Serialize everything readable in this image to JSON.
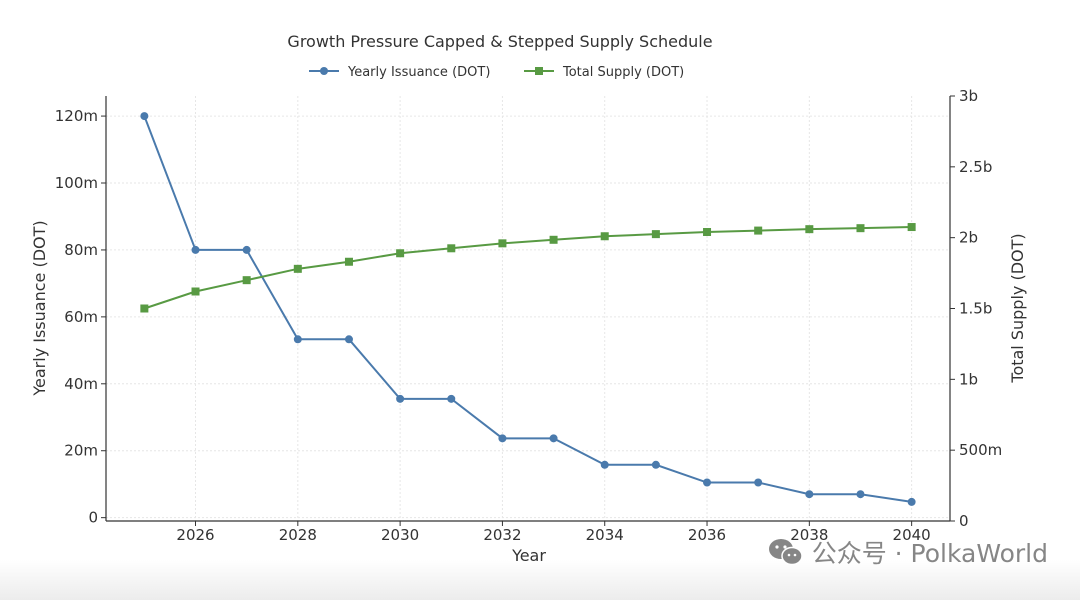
{
  "chart_data": {
    "type": "line",
    "title": "Growth Pressure Capped & Stepped Supply Schedule",
    "xlabel": "Year",
    "ylabel_left": "Yearly Issuance (DOT)",
    "ylabel_right": "Total Supply (DOT)",
    "xlim": [
      2024.25,
      2040.75
    ],
    "ylim_left": [
      -1000000,
      126000000
    ],
    "ylim_right": [
      0,
      3000000000
    ],
    "x_ticks": [
      2026,
      2028,
      2030,
      2032,
      2034,
      2036,
      2038,
      2040
    ],
    "x_tick_labels": [
      "2026",
      "2028",
      "2030",
      "2032",
      "2034",
      "2036",
      "2038",
      "2040"
    ],
    "y_left_ticks": [
      0,
      20000000,
      40000000,
      60000000,
      80000000,
      100000000,
      120000000
    ],
    "y_left_tick_labels": [
      "0",
      "20m",
      "40m",
      "60m",
      "80m",
      "100m",
      "120m"
    ],
    "y_right_ticks": [
      0,
      500000000,
      1000000000,
      1500000000,
      2000000000,
      2500000000,
      3000000000
    ],
    "y_right_tick_labels": [
      "0",
      "500m",
      "1b",
      "1.5b",
      "2b",
      "2.5b",
      "3b"
    ],
    "grid": true,
    "legend_position": "top-center",
    "x": [
      2025,
      2026,
      2027,
      2028,
      2029,
      2030,
      2031,
      2032,
      2033,
      2034,
      2035,
      2036,
      2037,
      2038,
      2039,
      2040
    ],
    "series": [
      {
        "name": "Yearly Issuance (DOT)",
        "axis": "left",
        "marker": "circle",
        "color": "#4a7aac",
        "values": [
          120000000,
          80000000,
          80000000,
          53300000,
          53300000,
          35500000,
          35500000,
          23700000,
          23700000,
          15800000,
          15800000,
          10500000,
          10500000,
          7000000,
          7000000,
          4700000
        ]
      },
      {
        "name": "Total Supply (DOT)",
        "axis": "right",
        "marker": "square",
        "color": "#589a43",
        "values": [
          1500000000,
          1620000000,
          1700000000,
          1780000000,
          1830000000,
          1890000000,
          1925000000,
          1960000000,
          1985000000,
          2010000000,
          2025000000,
          2040000000,
          2050000000,
          2060000000,
          2067000000,
          2075000000
        ]
      }
    ]
  },
  "watermark": {
    "text": "公众号 · PolkaWorld",
    "icon": "wechat-icon"
  }
}
